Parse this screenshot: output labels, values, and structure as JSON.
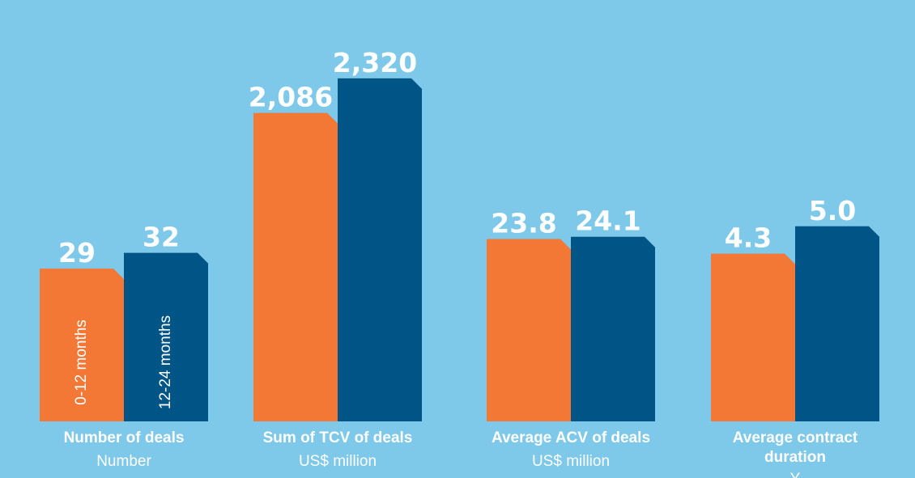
{
  "colors": {
    "background": "#7ec8ea",
    "series_0_12": "#f37735",
    "series_12_24": "#005587"
  },
  "chart_data": {
    "type": "bar",
    "panels": [
      {
        "title": "Number of deals",
        "unit": "Number",
        "values": [
          29,
          32
        ],
        "labels": [
          "29",
          "32"
        ],
        "ylim": [
          0,
          80
        ]
      },
      {
        "title": "Sum of TCV of deals",
        "unit": "US$ million",
        "values": [
          2086,
          2320
        ],
        "labels": [
          "2,086",
          "2,320"
        ],
        "ylim": [
          0,
          2850
        ]
      },
      {
        "title": "Average ACV of deals",
        "unit": "US$ million",
        "values": [
          23.8,
          24.1
        ],
        "labels": [
          "23.8",
          "24.1"
        ],
        "ylim": [
          0,
          55
        ]
      },
      {
        "title": "Average contract duration",
        "unit": "Y",
        "values": [
          4.3,
          5.0
        ],
        "labels": [
          "4.3",
          "5.0"
        ],
        "ylim": [
          0,
          10.8
        ]
      }
    ],
    "series": [
      {
        "name": "0-12 months"
      },
      {
        "name": "12-24 months"
      }
    ]
  }
}
